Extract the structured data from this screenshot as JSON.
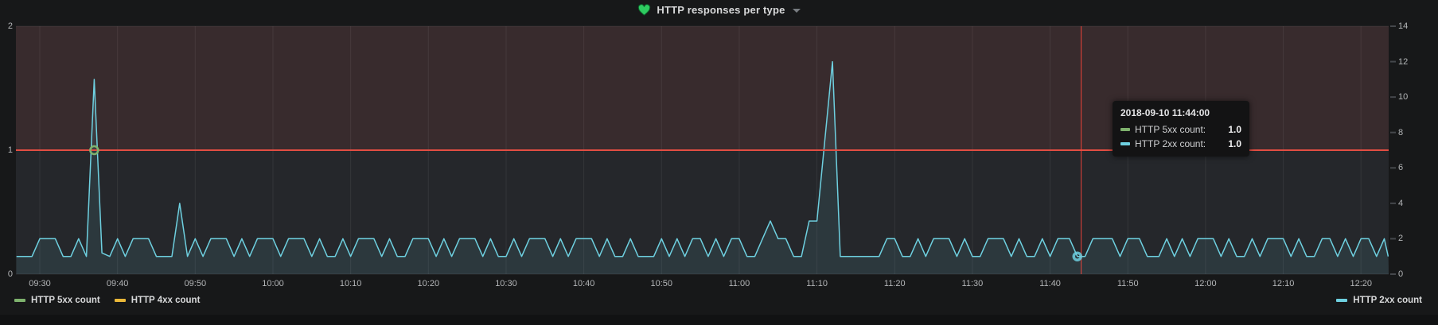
{
  "panel": {
    "title": "HTTP responses per type",
    "title_icon": "heart-icon",
    "heart_color": "#2ecb60"
  },
  "tooltip": {
    "timestamp": "2018-09-10 11:44:00",
    "rows": [
      {
        "label": "HTTP 5xx count:",
        "value": "1.0",
        "color": "#7EB26D"
      },
      {
        "label": "HTTP 2xx count:",
        "value": "1.0",
        "color": "#6ED0E0"
      }
    ]
  },
  "legend": {
    "left": [
      {
        "label": "HTTP 5xx count",
        "color": "#7EB26D"
      },
      {
        "label": "HTTP 4xx count",
        "color": "#EAB839"
      }
    ],
    "right": [
      {
        "label": "HTTP 2xx count",
        "color": "#6ED0E0"
      }
    ]
  },
  "chart_data": {
    "type": "line",
    "title": "HTTP responses per type",
    "x_ticks": [
      "09:30",
      "09:40",
      "09:50",
      "10:00",
      "10:10",
      "10:20",
      "10:30",
      "10:40",
      "10:50",
      "11:00",
      "11:10",
      "11:20",
      "11:30",
      "11:40",
      "11:50",
      "12:00",
      "12:10",
      "12:20"
    ],
    "x_tick_interval_minutes": 10,
    "time_range": [
      "09:27",
      "12:24"
    ],
    "y_axis_left": {
      "ticks": [
        "0",
        "1",
        "2"
      ],
      "min": 0,
      "max": 2
    },
    "y_axis_right": {
      "ticks": [
        "0",
        "2",
        "4",
        "6",
        "8",
        "10",
        "12",
        "14"
      ],
      "min": 0,
      "max": 14
    },
    "threshold": {
      "value": 1,
      "axis": "left",
      "color": "#E24D42",
      "fill_above": "rgba(226,77,66,0.10)"
    },
    "crosshair": {
      "time": "11:44",
      "minutes_from_0930": 134,
      "color": "rgba(255,70,60,0.9)"
    },
    "grid": {
      "vertical": true,
      "horizontal_left_ticks": true,
      "color": "rgba(255,255,255,0.07)"
    },
    "series": [
      {
        "name": "HTTP 5xx count",
        "color": "#7EB26D",
        "axis": "left",
        "style": "points",
        "points": [
          {
            "time": "09:37",
            "minutes_from_0930": 7,
            "value": 1.0
          },
          {
            "time": "11:44",
            "minutes_from_0930": 134,
            "value": 1.0
          }
        ]
      },
      {
        "name": "HTTP 4xx count",
        "color": "#EAB839",
        "axis": "left",
        "style": "line",
        "points": []
      },
      {
        "name": "HTTP 2xx count",
        "color": "#6ED0E0",
        "axis": "right",
        "style": "line-area",
        "fill": "rgba(110,208,224,0.10)",
        "vertices_minutes_value": [
          [
            -3,
            1
          ],
          [
            -1,
            1
          ],
          [
            0,
            2
          ],
          [
            2,
            2
          ],
          [
            3,
            1
          ],
          [
            4,
            1
          ],
          [
            5,
            2
          ],
          [
            6,
            1
          ],
          [
            7,
            11
          ],
          [
            8,
            1.2
          ],
          [
            9,
            1
          ],
          [
            10,
            2
          ],
          [
            11,
            1
          ],
          [
            12,
            2
          ],
          [
            14,
            2
          ],
          [
            15,
            1
          ],
          [
            17,
            1
          ],
          [
            18,
            4
          ],
          [
            19,
            1
          ],
          [
            20,
            2
          ],
          [
            21,
            1
          ],
          [
            22,
            2
          ],
          [
            24,
            2
          ],
          [
            25,
            1
          ],
          [
            26,
            2
          ],
          [
            27,
            1
          ],
          [
            28,
            2
          ],
          [
            30,
            2
          ],
          [
            31,
            1
          ],
          [
            32,
            2
          ],
          [
            34,
            2
          ],
          [
            35,
            1
          ],
          [
            36,
            2
          ],
          [
            37,
            1
          ],
          [
            38,
            1
          ],
          [
            39,
            2
          ],
          [
            40,
            1
          ],
          [
            41,
            2
          ],
          [
            43,
            2
          ],
          [
            44,
            1
          ],
          [
            45,
            2
          ],
          [
            46,
            1
          ],
          [
            47,
            1
          ],
          [
            48,
            2
          ],
          [
            50,
            2
          ],
          [
            51,
            1
          ],
          [
            52,
            2
          ],
          [
            53,
            1
          ],
          [
            54,
            2
          ],
          [
            56,
            2
          ],
          [
            57,
            1
          ],
          [
            58,
            2
          ],
          [
            59,
            1
          ],
          [
            60,
            1
          ],
          [
            61,
            2
          ],
          [
            62,
            1
          ],
          [
            63,
            2
          ],
          [
            65,
            2
          ],
          [
            66,
            1
          ],
          [
            67,
            2
          ],
          [
            68,
            1
          ],
          [
            69,
            2
          ],
          [
            71,
            2
          ],
          [
            72,
            1
          ],
          [
            73,
            2
          ],
          [
            74,
            1
          ],
          [
            75,
            1
          ],
          [
            76,
            2
          ],
          [
            77,
            1
          ],
          [
            79,
            1
          ],
          [
            80,
            2
          ],
          [
            81,
            1
          ],
          [
            82,
            2
          ],
          [
            83,
            1
          ],
          [
            84,
            2
          ],
          [
            85,
            2
          ],
          [
            86,
            1
          ],
          [
            87,
            2
          ],
          [
            88,
            1
          ],
          [
            89,
            2
          ],
          [
            90,
            2
          ],
          [
            91,
            1
          ],
          [
            92,
            1
          ],
          [
            93,
            2
          ],
          [
            94,
            3
          ],
          [
            95,
            2
          ],
          [
            96,
            2
          ],
          [
            97,
            1
          ],
          [
            98,
            1
          ],
          [
            99,
            3
          ],
          [
            100,
            3
          ],
          [
            102,
            12
          ],
          [
            103,
            1
          ],
          [
            108,
            1
          ],
          [
            109,
            2
          ],
          [
            110,
            2
          ],
          [
            111,
            1
          ],
          [
            112,
            1
          ],
          [
            113,
            2
          ],
          [
            114,
            1
          ],
          [
            115,
            2
          ],
          [
            117,
            2
          ],
          [
            118,
            1
          ],
          [
            119,
            2
          ],
          [
            120,
            1
          ],
          [
            121,
            1
          ],
          [
            122,
            2
          ],
          [
            124,
            2
          ],
          [
            125,
            1
          ],
          [
            126,
            2
          ],
          [
            127,
            1
          ],
          [
            128,
            1
          ],
          [
            129,
            2
          ],
          [
            130,
            1
          ],
          [
            131,
            2
          ],
          [
            132.5,
            2
          ],
          [
            133.5,
            1
          ],
          [
            134.5,
            1
          ],
          [
            135.5,
            2
          ],
          [
            138,
            2
          ],
          [
            139,
            1
          ],
          [
            140,
            2
          ],
          [
            141.5,
            2
          ],
          [
            142.5,
            1
          ],
          [
            144,
            1
          ],
          [
            145,
            2
          ],
          [
            146,
            1
          ],
          [
            147,
            2
          ],
          [
            148,
            1
          ],
          [
            149,
            2
          ],
          [
            151,
            2
          ],
          [
            152,
            1
          ],
          [
            153,
            2
          ],
          [
            154,
            1
          ],
          [
            155,
            1
          ],
          [
            156,
            2
          ],
          [
            157,
            1
          ],
          [
            158,
            2
          ],
          [
            160,
            2
          ],
          [
            161,
            1
          ],
          [
            162,
            2
          ],
          [
            163,
            1
          ],
          [
            164,
            1
          ],
          [
            165,
            2
          ],
          [
            166,
            2
          ],
          [
            167,
            1
          ],
          [
            168,
            2
          ],
          [
            169,
            1
          ],
          [
            170,
            2
          ],
          [
            171,
            2
          ],
          [
            172,
            1
          ],
          [
            173,
            2
          ],
          [
            173.5,
            1
          ]
        ],
        "hover_point": {
          "time": "11:44",
          "minutes_from_0930": 133.5,
          "value": 1.0
        }
      }
    ],
    "legend_position": "bottom"
  }
}
